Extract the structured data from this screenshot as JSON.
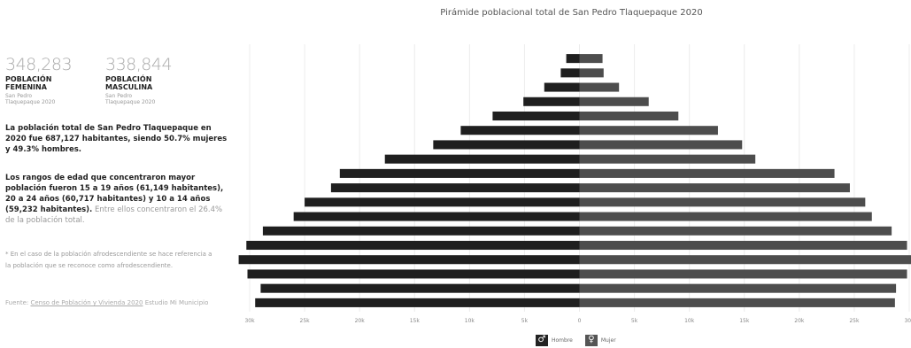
{
  "stats": {
    "female": {
      "value": "348,283",
      "label": "POBLACIÓN FEMENINA",
      "source": "San Pedro Tlaquepaque 2020"
    },
    "male": {
      "value": "338,844",
      "label": "POBLACIÓN MASCULINA",
      "source": "San Pedro Tlaquepaque 2020"
    }
  },
  "text": {
    "paragraph1": "La población total de San Pedro Tlaquepaque en 2020 fue 687,127 habitantes, siendo 50.7% mujeres y 49.3% hombres.",
    "paragraph2_bold": "Los rangos de edad que concentraron mayor población fueron 15 a 19 años (61,149 habitantes), 20 a 24 años (60,717 habitantes) y 10 a 14 años (59,232 habitantes).",
    "paragraph2_rest": "Entre ellos concentraron el 26.4% de la población total.",
    "note": "* En el caso de la población afrodescendiente se hace referencia a la población que se reconoce como afrodescendiente.",
    "source_prefix": "Fuente:",
    "source_link": "Censo de Población y Vivienda 2020",
    "source_suffix": "Estudio Mi Municipio"
  },
  "chart_data": {
    "type": "bar",
    "orientation": "horizontal-population-pyramid",
    "title": "Pirámide poblacional total de San Pedro Tlaquepaque 2020",
    "xlim": [
      -30000,
      30000
    ],
    "x_ticks": [
      "30k",
      "25k",
      "20k",
      "15k",
      "10k",
      "5k",
      "0",
      "5k",
      "10k",
      "15k",
      "20k",
      "25k",
      "30k"
    ],
    "grid": true,
    "legend_position": "bottom",
    "series": [
      {
        "name": "Hombre",
        "color": "#1f1f1f",
        "values": [
          29500,
          29000,
          30200,
          31000,
          30300,
          28800,
          26000,
          25000,
          22600,
          21800,
          17700,
          13300,
          10800,
          7900,
          5100,
          3200,
          1700,
          1200
        ]
      },
      {
        "name": "Mujer",
        "color": "#4d4d4d",
        "values": [
          28700,
          28800,
          29800,
          30600,
          29800,
          28400,
          26600,
          26000,
          24600,
          23200,
          16000,
          14800,
          12600,
          9000,
          6300,
          3600,
          2200,
          2100
        ]
      }
    ],
    "legend": {
      "male_label": "Hombre",
      "female_label": "Mujer"
    }
  }
}
